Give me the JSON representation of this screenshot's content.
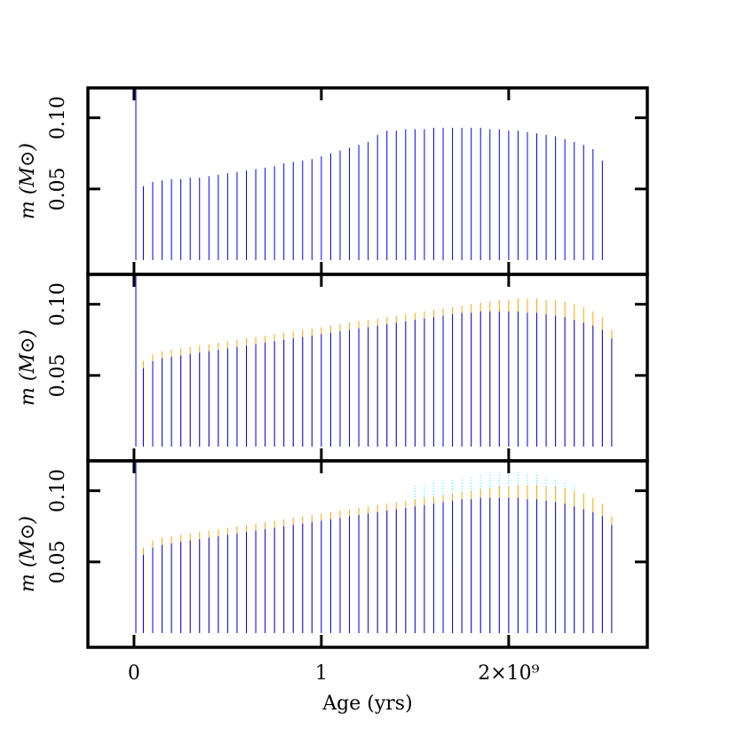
{
  "chart_data": [
    {
      "type": "bar",
      "ylabel": "m (M⊙)",
      "x": [
        10000000,
        50000000,
        100000000,
        150000000,
        200000000,
        250000000,
        300000000,
        350000000,
        400000000,
        450000000,
        500000000,
        550000000,
        600000000,
        650000000,
        700000000,
        750000000,
        800000000,
        850000000,
        900000000,
        950000000,
        1000000000,
        1050000000,
        1100000000,
        1150000000,
        1200000000,
        1250000000,
        1300000000,
        1350000000,
        1400000000,
        1450000000,
        1500000000,
        1550000000,
        1600000000,
        1650000000,
        1700000000,
        1750000000,
        1800000000,
        1850000000,
        1900000000,
        1950000000,
        2000000000,
        2050000000,
        2100000000,
        2150000000,
        2200000000,
        2250000000,
        2300000000,
        2350000000,
        2400000000,
        2450000000,
        2500000000,
        2550000000
      ],
      "series": [
        {
          "color": "#0000ff",
          "values": [
            0.121,
            0.052,
            0.055,
            0.056,
            0.057,
            0.057,
            0.058,
            0.058,
            0.059,
            0.06,
            0.061,
            0.062,
            0.063,
            0.064,
            0.065,
            0.066,
            0.068,
            0.069,
            0.07,
            0.071,
            0.073,
            0.075,
            0.077,
            0.079,
            0.081,
            0.083,
            0.088,
            0.091,
            0.091,
            0.092,
            0.092,
            0.092,
            0.093,
            0.093,
            0.093,
            0.093,
            0.093,
            0.093,
            0.092,
            0.092,
            0.091,
            0.091,
            0.09,
            0.089,
            0.088,
            0.087,
            0.085,
            0.083,
            0.081,
            0.078,
            0.07,
            null
          ]
        }
      ],
      "xlim": [
        -246000000,
        2740000000
      ],
      "ylim": [
        -0.01,
        0.121
      ],
      "yticks": [
        0.05,
        {
          "value": 0.1,
          "label": "0.10"
        }
      ]
    },
    {
      "type": "bar",
      "ylabel": "m (M⊙)",
      "x": [
        10000000,
        50000000,
        100000000,
        150000000,
        200000000,
        250000000,
        300000000,
        350000000,
        400000000,
        450000000,
        500000000,
        550000000,
        600000000,
        650000000,
        700000000,
        750000000,
        800000000,
        850000000,
        900000000,
        950000000,
        1000000000,
        1050000000,
        1100000000,
        1150000000,
        1200000000,
        1250000000,
        1300000000,
        1350000000,
        1400000000,
        1450000000,
        1500000000,
        1550000000,
        1600000000,
        1650000000,
        1700000000,
        1750000000,
        1800000000,
        1850000000,
        1900000000,
        1950000000,
        2000000000,
        2050000000,
        2100000000,
        2150000000,
        2200000000,
        2250000000,
        2300000000,
        2350000000,
        2400000000,
        2450000000,
        2500000000,
        2550000000
      ],
      "series": [
        {
          "color": "#ffa500",
          "values": [
            0.121,
            0.06,
            0.065,
            0.067,
            0.068,
            0.069,
            0.07,
            0.071,
            0.072,
            0.073,
            0.074,
            0.075,
            0.076,
            0.077,
            0.078,
            0.079,
            0.08,
            0.081,
            0.082,
            0.083,
            0.084,
            0.085,
            0.086,
            0.087,
            0.088,
            0.089,
            0.09,
            0.091,
            0.092,
            0.093,
            0.094,
            0.095,
            0.096,
            0.097,
            0.098,
            0.099,
            0.1,
            0.101,
            0.102,
            0.103,
            0.103,
            0.104,
            0.104,
            0.104,
            0.103,
            0.103,
            0.102,
            0.1,
            0.098,
            0.095,
            0.091,
            0.082
          ]
        },
        {
          "color": "#0000ff",
          "values": [
            0.121,
            0.055,
            0.06,
            0.062,
            0.063,
            0.064,
            0.065,
            0.066,
            0.067,
            0.068,
            0.069,
            0.07,
            0.071,
            0.072,
            0.073,
            0.074,
            0.075,
            0.076,
            0.077,
            0.078,
            0.079,
            0.08,
            0.081,
            0.082,
            0.083,
            0.084,
            0.085,
            0.086,
            0.087,
            0.088,
            0.089,
            0.09,
            0.091,
            0.092,
            0.093,
            0.094,
            0.094,
            0.095,
            0.095,
            0.095,
            0.095,
            0.095,
            0.094,
            0.094,
            0.093,
            0.092,
            0.091,
            0.089,
            0.087,
            0.085,
            0.082,
            0.076
          ]
        }
      ],
      "xlim": [
        -246000000,
        2740000000
      ],
      "ylim": [
        -0.01,
        0.121
      ],
      "yticks": [
        0.05,
        {
          "value": 0.1,
          "label": "0.10"
        }
      ]
    },
    {
      "type": "bar",
      "ylabel": "m (M⊙)",
      "xlabel": "Age (yrs)",
      "x": [
        10000000,
        50000000,
        100000000,
        150000000,
        200000000,
        250000000,
        300000000,
        350000000,
        400000000,
        450000000,
        500000000,
        550000000,
        600000000,
        650000000,
        700000000,
        750000000,
        800000000,
        850000000,
        900000000,
        950000000,
        1000000000,
        1050000000,
        1100000000,
        1150000000,
        1200000000,
        1250000000,
        1300000000,
        1350000000,
        1400000000,
        1450000000,
        1500000000,
        1550000000,
        1600000000,
        1650000000,
        1700000000,
        1750000000,
        1800000000,
        1850000000,
        1900000000,
        1950000000,
        2000000000,
        2050000000,
        2100000000,
        2150000000,
        2200000000,
        2250000000,
        2300000000,
        2350000000,
        2400000000,
        2450000000,
        2500000000,
        2550000000
      ],
      "series": [
        {
          "color": "#00ffff",
          "dashed": true,
          "values": [
            null,
            null,
            null,
            null,
            null,
            null,
            null,
            null,
            null,
            null,
            null,
            null,
            null,
            null,
            null,
            null,
            null,
            null,
            null,
            null,
            null,
            null,
            null,
            null,
            null,
            null,
            null,
            null,
            null,
            null,
            0.104,
            0.105,
            0.106,
            0.107,
            0.108,
            0.109,
            0.11,
            0.111,
            0.112,
            0.112,
            0.113,
            0.113,
            0.112,
            0.111,
            0.11,
            0.108,
            0.106,
            0.104,
            null,
            null,
            null,
            null
          ]
        },
        {
          "color": "#ffa500",
          "values": [
            0.121,
            0.06,
            0.065,
            0.067,
            0.068,
            0.069,
            0.07,
            0.071,
            0.072,
            0.073,
            0.074,
            0.075,
            0.076,
            0.077,
            0.078,
            0.079,
            0.08,
            0.081,
            0.082,
            0.083,
            0.084,
            0.085,
            0.086,
            0.087,
            0.088,
            0.089,
            0.09,
            0.091,
            0.092,
            0.093,
            0.094,
            0.095,
            0.096,
            0.097,
            0.098,
            0.099,
            0.1,
            0.101,
            0.102,
            0.103,
            0.103,
            0.104,
            0.104,
            0.104,
            0.103,
            0.103,
            0.102,
            0.1,
            0.098,
            0.095,
            0.091,
            0.082
          ]
        },
        {
          "color": "#0000ff",
          "values": [
            0.121,
            0.055,
            0.06,
            0.062,
            0.063,
            0.064,
            0.065,
            0.066,
            0.067,
            0.068,
            0.069,
            0.07,
            0.071,
            0.072,
            0.073,
            0.074,
            0.075,
            0.076,
            0.077,
            0.078,
            0.079,
            0.08,
            0.081,
            0.082,
            0.083,
            0.084,
            0.085,
            0.086,
            0.087,
            0.088,
            0.089,
            0.09,
            0.091,
            0.092,
            0.093,
            0.094,
            0.094,
            0.095,
            0.095,
            0.095,
            0.095,
            0.095,
            0.094,
            0.094,
            0.093,
            0.092,
            0.091,
            0.089,
            0.087,
            0.085,
            0.082,
            0.076
          ]
        }
      ],
      "xlim": [
        -246000000,
        2740000000
      ],
      "ylim": [
        -0.01,
        0.121
      ],
      "xticks": [
        0,
        {
          "value": 1000000000,
          "label": "1"
        },
        {
          "value": 2000000000,
          "label": "2×10⁹"
        }
      ],
      "yticks": [
        0.05,
        {
          "value": 0.1,
          "label": "0.10"
        }
      ]
    }
  ]
}
